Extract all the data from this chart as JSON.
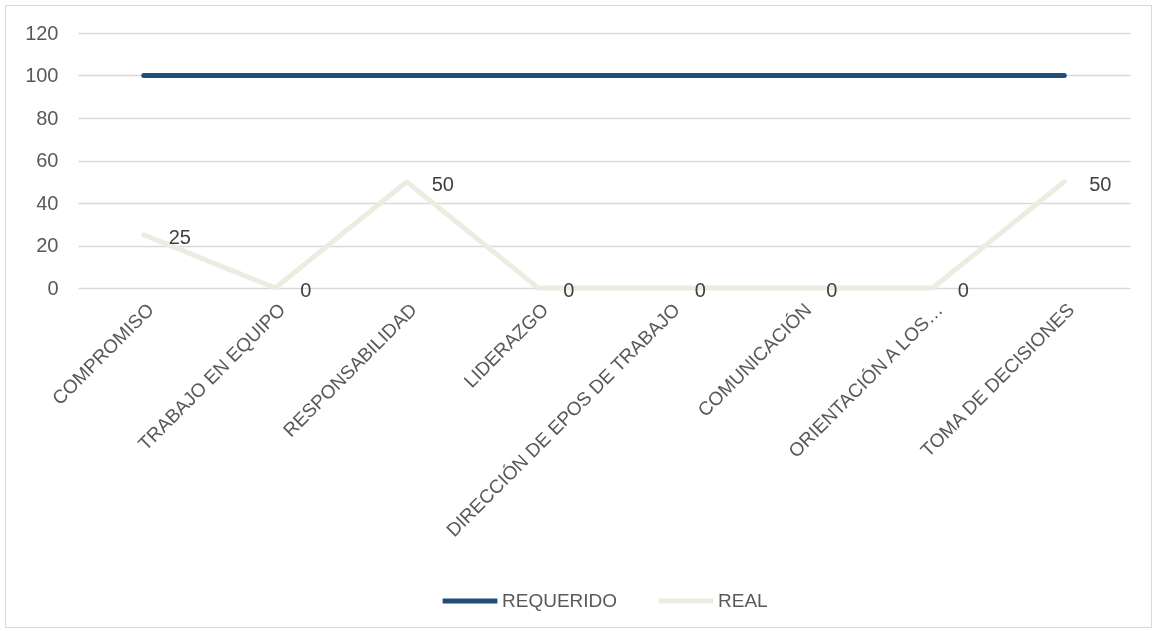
{
  "chart_data": {
    "type": "line",
    "categories": [
      "COMPROMISO",
      "TRABAJO EN EQUIPO",
      "RESPONSABILIDAD",
      "LIDERAZGO",
      "DIRECCIÓN DE EPOS DE TRABAJO",
      "COMUNICACIÓN",
      "ORIENTACIÓN A LOS…",
      "TOMA DE DECISIONES"
    ],
    "series": [
      {
        "name": "REQUERIDO",
        "color": "#1f4e79",
        "values": [
          100,
          100,
          100,
          100,
          100,
          100,
          100,
          100
        ]
      },
      {
        "name": "REAL",
        "color": "#eeece1",
        "values": [
          25,
          0,
          50,
          0,
          0,
          0,
          0,
          50
        ],
        "value_labels": [
          "25",
          "0",
          "50",
          "0",
          "0",
          "0",
          "0",
          "50"
        ]
      }
    ],
    "ylim": [
      0,
      120
    ],
    "yticks": [
      0,
      20,
      40,
      60,
      80,
      100,
      120
    ],
    "grid": "y",
    "legend": "bottom"
  }
}
